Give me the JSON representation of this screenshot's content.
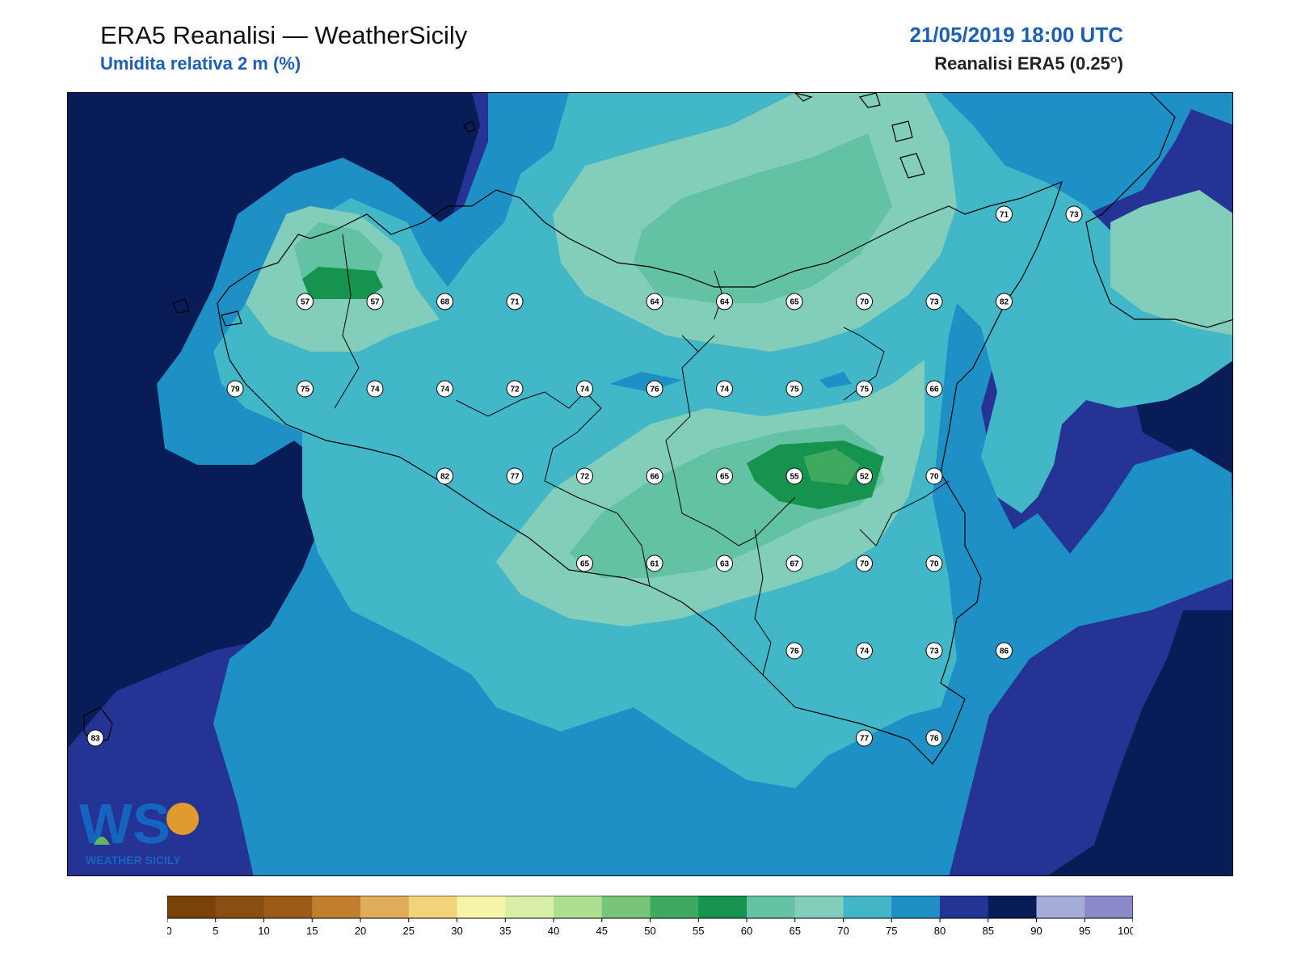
{
  "header": {
    "title": "ERA5 Reanalisi — WeatherSicily",
    "subtitle": "Umidita relativa 2 m (%)",
    "datetime": "21/05/2019 18:00 UTC",
    "source": "Reanalisi ERA5 (0.25°)"
  },
  "logo": {
    "letters": "WS",
    "caption": "WEATHER SICILY"
  },
  "colors": {
    "ocean_dark": "#0b1f5a",
    "levels": [
      "#7a4208",
      "#8a4d12",
      "#9c5a17",
      "#c17f2e",
      "#e0ad5b",
      "#f1d47a",
      "#f7f4a8",
      "#d9eea6",
      "#addf90",
      "#77c57a",
      "#3eaa5f",
      "#16934c",
      "#63c2a4",
      "#82ceba",
      "#41b7c7",
      "#1e90c5",
      "#253494",
      "#081d58",
      "#a6acd8",
      "#8b89c8"
    ]
  },
  "chart_data": {
    "type": "heatmap",
    "colorbar": {
      "ticks": [
        "0",
        "5",
        "10",
        "15",
        "20",
        "25",
        "30",
        "35",
        "40",
        "45",
        "50",
        "55",
        "60",
        "65",
        "70",
        "75",
        "80",
        "85",
        "90",
        "95",
        "100"
      ]
    },
    "stations": [
      {
        "value": "71",
        "col": 13,
        "row": 0
      },
      {
        "value": "73",
        "col": 14,
        "row": 0
      },
      {
        "value": "57",
        "col": 3,
        "row": 1
      },
      {
        "value": "57",
        "col": 4,
        "row": 1
      },
      {
        "value": "68",
        "col": 5,
        "row": 1
      },
      {
        "value": "71",
        "col": 6,
        "row": 1
      },
      {
        "value": "64",
        "col": 8,
        "row": 1
      },
      {
        "value": "64",
        "col": 9,
        "row": 1
      },
      {
        "value": "65",
        "col": 10,
        "row": 1
      },
      {
        "value": "70",
        "col": 11,
        "row": 1
      },
      {
        "value": "73",
        "col": 12,
        "row": 1
      },
      {
        "value": "82",
        "col": 13,
        "row": 1
      },
      {
        "value": "79",
        "col": 2,
        "row": 2
      },
      {
        "value": "75",
        "col": 3,
        "row": 2
      },
      {
        "value": "74",
        "col": 4,
        "row": 2
      },
      {
        "value": "74",
        "col": 5,
        "row": 2
      },
      {
        "value": "72",
        "col": 6,
        "row": 2
      },
      {
        "value": "74",
        "col": 7,
        "row": 2
      },
      {
        "value": "76",
        "col": 8,
        "row": 2
      },
      {
        "value": "74",
        "col": 9,
        "row": 2
      },
      {
        "value": "75",
        "col": 10,
        "row": 2
      },
      {
        "value": "75",
        "col": 11,
        "row": 2
      },
      {
        "value": "66",
        "col": 12,
        "row": 2
      },
      {
        "value": "82",
        "col": 5,
        "row": 3
      },
      {
        "value": "77",
        "col": 6,
        "row": 3
      },
      {
        "value": "72",
        "col": 7,
        "row": 3
      },
      {
        "value": "66",
        "col": 8,
        "row": 3
      },
      {
        "value": "65",
        "col": 9,
        "row": 3
      },
      {
        "value": "55",
        "col": 10,
        "row": 3
      },
      {
        "value": "52",
        "col": 11,
        "row": 3
      },
      {
        "value": "70",
        "col": 12,
        "row": 3
      },
      {
        "value": "65",
        "col": 7,
        "row": 4
      },
      {
        "value": "61",
        "col": 8,
        "row": 4
      },
      {
        "value": "63",
        "col": 9,
        "row": 4
      },
      {
        "value": "67",
        "col": 10,
        "row": 4
      },
      {
        "value": "70",
        "col": 11,
        "row": 4
      },
      {
        "value": "70",
        "col": 12,
        "row": 4
      },
      {
        "value": "76",
        "col": 10,
        "row": 5
      },
      {
        "value": "74",
        "col": 11,
        "row": 5
      },
      {
        "value": "73",
        "col": 12,
        "row": 5
      },
      {
        "value": "86",
        "col": 13,
        "row": 5
      },
      {
        "value": "83",
        "col": 0,
        "row": 6
      },
      {
        "value": "77",
        "col": 11,
        "row": 6
      },
      {
        "value": "76",
        "col": 12,
        "row": 6
      }
    ]
  }
}
